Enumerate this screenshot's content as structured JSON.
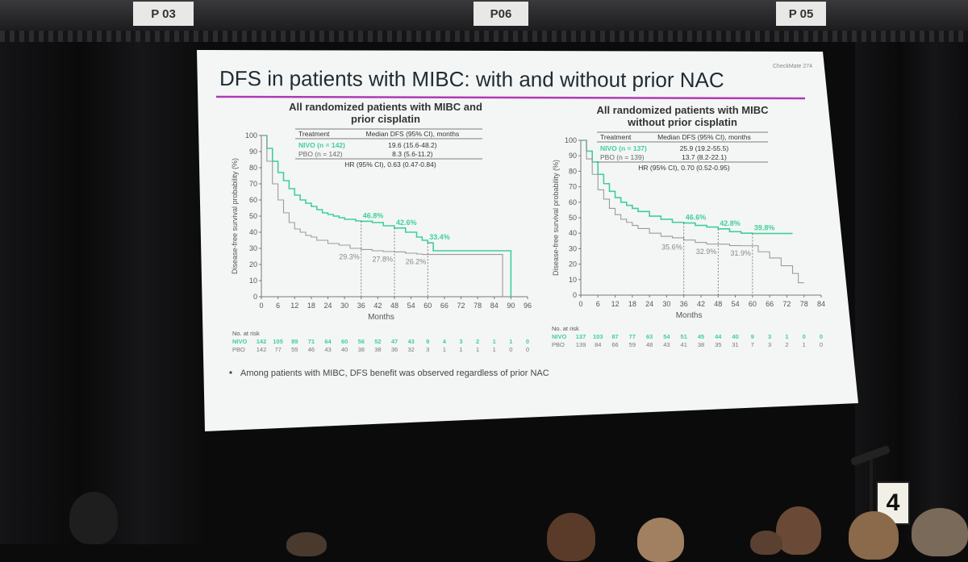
{
  "room": {
    "signs": [
      "P 03",
      "P06",
      "P 05"
    ],
    "stand_number": "4"
  },
  "slide": {
    "corner_tag": "CheckMate 274",
    "title": "DFS in patients with MIBC: with and without prior NAC",
    "accent_color": "#b03ab5",
    "nivo_color": "#3fcf9a",
    "pbo_color": "#9a9a9a",
    "bullet": "Among patients with MIBC, DFS benefit was observed regardless of prior NAC"
  },
  "chart_data": [
    {
      "type": "line",
      "title": "All randomized patients with MIBC and prior cisplatin",
      "xlabel": "Months",
      "ylabel": "Disease-free survival probability (%)",
      "xlim": [
        0,
        96
      ],
      "ylim": [
        0,
        100
      ],
      "x_ticks": [
        0,
        6,
        12,
        18,
        24,
        30,
        36,
        42,
        48,
        54,
        60,
        66,
        72,
        78,
        84,
        90,
        96
      ],
      "y_ticks": [
        0,
        10,
        20,
        30,
        40,
        50,
        60,
        70,
        80,
        90,
        100
      ],
      "table": {
        "header": [
          "Treatment",
          "Median DFS (95% CI), months"
        ],
        "rows": [
          [
            "NIVO (n = 142)",
            "19.6 (15.6-48.2)"
          ],
          [
            "PBO (n = 142)",
            "8.3 (5.6-11.2)"
          ]
        ],
        "hr": "HR (95% CI), 0.63 (0.47-0.84)"
      },
      "series": [
        {
          "name": "NIVO",
          "x": [
            0,
            2,
            4,
            6,
            8,
            10,
            12,
            14,
            16,
            18,
            20,
            22,
            24,
            26,
            28,
            30,
            32,
            34,
            36,
            40,
            44,
            48,
            52,
            56,
            58,
            60,
            62,
            70,
            80,
            88,
            89,
            90
          ],
          "y": [
            100,
            92,
            84,
            77,
            72,
            67,
            63,
            60,
            58,
            56,
            54,
            52,
            51,
            50,
            49,
            48,
            48,
            47,
            46.8,
            46,
            44,
            42.6,
            40,
            37,
            35,
            33.4,
            28.5,
            28.5,
            28.5,
            28.5,
            28.5,
            0
          ]
        },
        {
          "name": "PBO",
          "x": [
            0,
            2,
            4,
            6,
            8,
            10,
            12,
            14,
            16,
            18,
            20,
            24,
            28,
            32,
            36,
            40,
            44,
            48,
            52,
            56,
            58,
            60,
            62,
            70,
            80,
            86,
            87
          ],
          "y": [
            100,
            84,
            70,
            60,
            52,
            46,
            42,
            40,
            38,
            37,
            35,
            33,
            32,
            30,
            29.3,
            28.5,
            28,
            27.8,
            27,
            26.5,
            26.2,
            26.2,
            26.2,
            26.2,
            26.2,
            26.2,
            0
          ]
        }
      ],
      "annotations": [
        {
          "x": 36,
          "nivo": "46.8%",
          "pbo": "29.3%"
        },
        {
          "x": 48,
          "nivo": "42.6%",
          "pbo": "27.8%"
        },
        {
          "x": 60,
          "nivo": "33.4%",
          "pbo": "26.2%"
        }
      ],
      "risk": {
        "label": "No. at risk",
        "nivo_label": "NIVO",
        "pbo_label": "PBO",
        "nivo": [
          "142",
          "105",
          "89",
          "71",
          "64",
          "60",
          "56",
          "52",
          "47",
          "43",
          "9",
          "4",
          "3",
          "2",
          "1",
          "1",
          "0"
        ],
        "pbo": [
          "142",
          "77",
          "55",
          "46",
          "43",
          "40",
          "38",
          "38",
          "36",
          "32",
          "3",
          "1",
          "1",
          "1",
          "1",
          "0",
          "0"
        ]
      }
    },
    {
      "type": "line",
      "title": "All randomized patients with MIBC without prior cisplatin",
      "xlabel": "Months",
      "ylabel": "Disease-free survival probability (%)",
      "xlim": [
        0,
        84
      ],
      "ylim": [
        0,
        100
      ],
      "x_ticks": [
        0,
        6,
        12,
        18,
        24,
        30,
        36,
        42,
        48,
        54,
        60,
        66,
        72,
        78,
        84
      ],
      "y_ticks": [
        0,
        10,
        20,
        30,
        40,
        50,
        60,
        70,
        80,
        90,
        100
      ],
      "table": {
        "header": [
          "Treatment",
          "Median DFS (95% CI), months"
        ],
        "rows": [
          [
            "NIVO (n = 137)",
            "25.9 (19.2-55.5)"
          ],
          [
            "PBO (n = 139)",
            "13.7 (8.2-22.1)"
          ]
        ],
        "hr": "HR (95% CI), 0.70 (0.52-0.95)"
      },
      "series": [
        {
          "name": "NIVO",
          "x": [
            0,
            2,
            4,
            6,
            8,
            10,
            12,
            14,
            16,
            18,
            20,
            24,
            28,
            32,
            36,
            40,
            44,
            48,
            52,
            56,
            60,
            64,
            68,
            74
          ],
          "y": [
            100,
            93,
            86,
            78,
            72,
            67,
            63,
            60,
            58,
            56,
            54,
            51,
            49,
            47,
            46.6,
            45,
            44,
            42.8,
            41,
            40,
            39.8,
            39.8,
            39.8,
            39.8
          ]
        },
        {
          "name": "PBO",
          "x": [
            0,
            2,
            4,
            6,
            8,
            10,
            12,
            14,
            16,
            18,
            20,
            24,
            28,
            32,
            36,
            40,
            44,
            48,
            52,
            56,
            60,
            62,
            66,
            70,
            74,
            76,
            78
          ],
          "y": [
            100,
            88,
            78,
            68,
            62,
            56,
            52,
            49,
            47,
            45,
            43,
            40,
            38,
            37,
            35.6,
            34,
            33,
            32.9,
            32,
            31.9,
            31.9,
            28,
            24,
            19,
            14,
            8,
            8
          ]
        }
      ],
      "annotations": [
        {
          "x": 36,
          "nivo": "46.6%",
          "pbo": "35.6%"
        },
        {
          "x": 48,
          "nivo": "42.8%",
          "pbo": "32.9%"
        },
        {
          "x": 60,
          "nivo": "39.8%",
          "pbo": "31.9%"
        }
      ],
      "risk": {
        "label": "No. at risk",
        "nivo_label": "NIVO",
        "pbo_label": "PBO",
        "nivo": [
          "137",
          "103",
          "87",
          "77",
          "63",
          "54",
          "51",
          "45",
          "44",
          "40",
          "9",
          "3",
          "1",
          "0",
          "0"
        ],
        "pbo": [
          "139",
          "84",
          "66",
          "59",
          "48",
          "43",
          "41",
          "38",
          "35",
          "31",
          "7",
          "3",
          "2",
          "1",
          "0"
        ]
      }
    }
  ]
}
